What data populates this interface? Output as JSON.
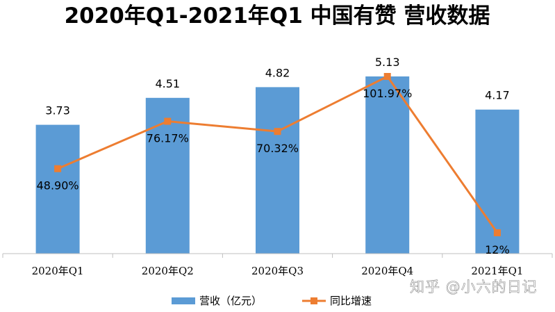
{
  "title": "2020年Q1-2021年Q1 中国有赞 营收数据",
  "watermark": "知乎 @小六的日记",
  "colors": {
    "bar": "#5B9BD5",
    "line": "#ED7D31",
    "axis": "#BFBFBF",
    "text": "#000000"
  },
  "legend": {
    "revenue_label": "营收（亿元）",
    "growth_label": "同比增速"
  },
  "chart_data": {
    "type": "bar",
    "title": "2020年Q1-2021年Q1 中国有赞 营收数据",
    "categories": [
      "2020年Q1",
      "2020年Q2",
      "2020年Q3",
      "2020年Q4",
      "2021年Q1"
    ],
    "series": [
      {
        "name": "营收（亿元）",
        "type": "bar",
        "axis": "primary",
        "values": [
          3.73,
          4.51,
          4.82,
          5.13,
          4.17
        ],
        "labels": [
          "3.73",
          "4.51",
          "4.82",
          "5.13",
          "4.17"
        ]
      },
      {
        "name": "同比增速",
        "type": "line",
        "axis": "secondary",
        "values": [
          48.9,
          76.17,
          70.32,
          101.97,
          12
        ],
        "labels": [
          "48.90%",
          "76.17%",
          "70.32%",
          "101.97%",
          "12%"
        ]
      }
    ],
    "ylim": [
      0,
      5.13
    ],
    "y2lim": [
      0,
      101.97
    ],
    "gridlines": false,
    "legend_position": "bottom"
  }
}
